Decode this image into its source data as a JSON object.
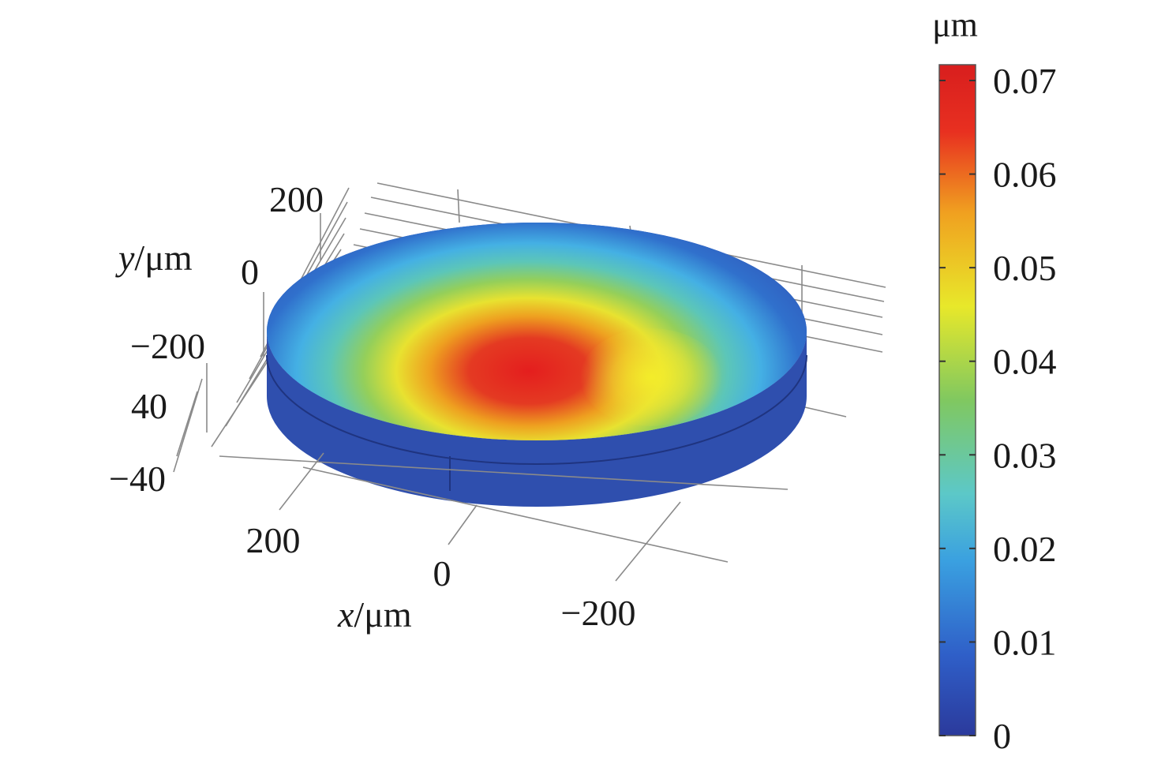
{
  "chart_data": {
    "type": "heatmap",
    "title": "",
    "axes": {
      "x": {
        "label_var": "x",
        "label_unit": "/μm",
        "ticks": [
          "200",
          "0",
          "−200"
        ]
      },
      "y": {
        "label_var": "y",
        "label_unit": "/μm",
        "ticks": [
          "200",
          "0",
          "−200"
        ]
      },
      "z": {
        "ticks": [
          "40",
          "−40"
        ]
      }
    },
    "colorbar": {
      "unit": "μm",
      "min": 0,
      "max": 0.072,
      "ticks": [
        "0.07",
        "0.06",
        "0.05",
        "0.04",
        "0.03",
        "0.02",
        "0.01",
        "0"
      ],
      "colormap": [
        "#2b3a9c",
        "#2f5fc8",
        "#3aa0e0",
        "#5cc8c8",
        "#80c860",
        "#e8e82a",
        "#f0a020",
        "#e83020",
        "#d81e1e"
      ]
    },
    "field": {
      "description": "surface displacement on a circular disk",
      "peak_value": 0.072,
      "edge_value": 0
    }
  }
}
